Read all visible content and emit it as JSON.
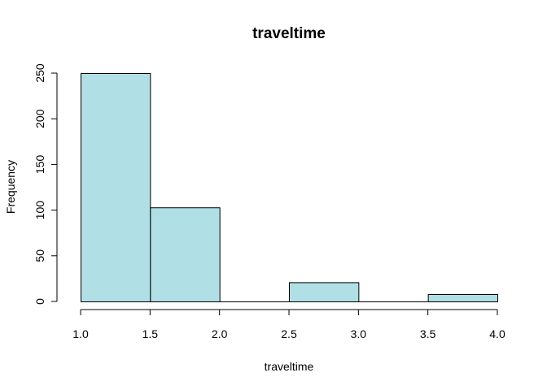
{
  "chart_data": {
    "type": "bar",
    "subtype": "histogram",
    "title": "traveltime",
    "xlabel": "traveltime",
    "ylabel": "Frequency",
    "bins": [
      {
        "start": 1.0,
        "end": 1.5,
        "count": 250
      },
      {
        "start": 1.5,
        "end": 2.0,
        "count": 103
      },
      {
        "start": 2.0,
        "end": 2.5,
        "count": 0
      },
      {
        "start": 2.5,
        "end": 3.0,
        "count": 21
      },
      {
        "start": 3.0,
        "end": 3.5,
        "count": 0
      },
      {
        "start": 3.5,
        "end": 4.0,
        "count": 8
      }
    ],
    "xlim": [
      1.0,
      4.0
    ],
    "ylim": [
      0,
      250
    ],
    "x_ticks": [
      "1.0",
      "1.5",
      "2.0",
      "2.5",
      "3.0",
      "3.5",
      "4.0"
    ],
    "y_ticks": [
      "0",
      "50",
      "100",
      "150",
      "200",
      "250"
    ],
    "bar_color": "#b0dfe5",
    "bar_border_color": "#000000",
    "grid": false
  }
}
